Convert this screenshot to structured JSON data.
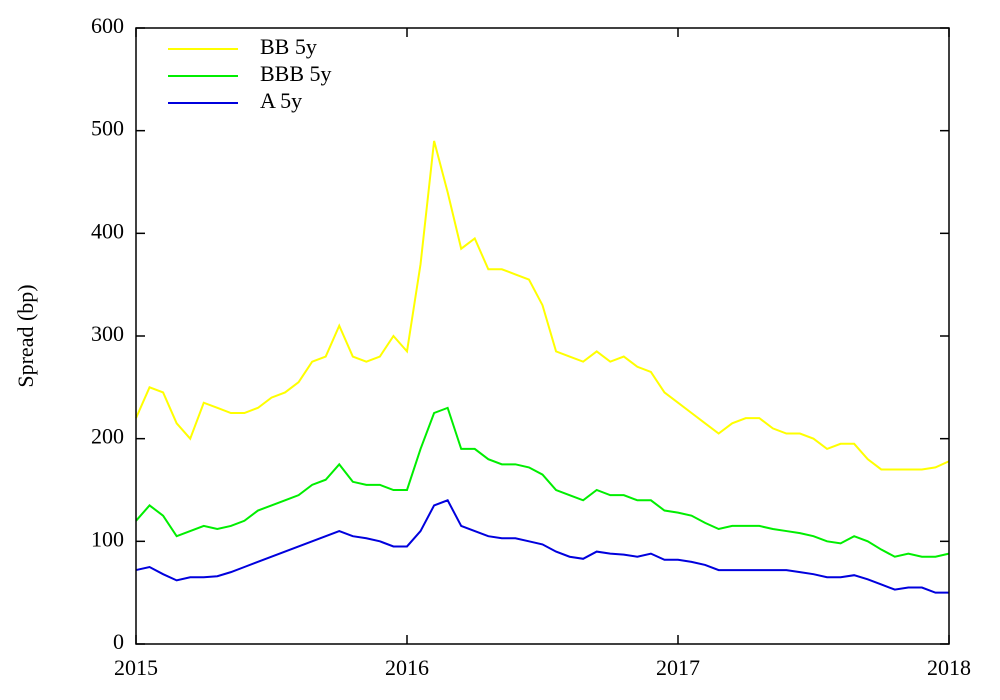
{
  "chart_data": {
    "type": "line",
    "y_label": "Spread (bp)",
    "x": [
      2015,
      2015.05,
      2015.1,
      2015.15,
      2015.2,
      2015.25,
      2015.3,
      2015.35,
      2015.4,
      2015.45,
      2015.5,
      2015.55,
      2015.6,
      2015.65,
      2015.7,
      2015.75,
      2015.8,
      2015.85,
      2015.9,
      2015.95,
      2016,
      2016.05,
      2016.1,
      2016.15,
      2016.2,
      2016.25,
      2016.3,
      2016.35,
      2016.4,
      2016.45,
      2016.5,
      2016.55,
      2016.6,
      2016.65,
      2016.7,
      2016.75,
      2016.8,
      2016.85,
      2016.9,
      2016.95,
      2017,
      2017.05,
      2017.1,
      2017.15,
      2017.2,
      2017.25,
      2017.3,
      2017.35,
      2017.4,
      2017.45,
      2017.5,
      2017.55,
      2017.6,
      2017.65,
      2017.7,
      2017.75,
      2017.8,
      2017.85,
      2017.9,
      2017.95,
      2018
    ],
    "series": [
      {
        "name": "BB 5y",
        "color": "#ffff00",
        "values": [
          220,
          250,
          245,
          215,
          200,
          235,
          230,
          225,
          225,
          230,
          240,
          245,
          255,
          275,
          280,
          310,
          280,
          275,
          280,
          300,
          285,
          370,
          490,
          440,
          385,
          395,
          365,
          365,
          360,
          355,
          330,
          285,
          280,
          275,
          285,
          275,
          280,
          270,
          265,
          245,
          235,
          225,
          215,
          205,
          215,
          220,
          220,
          210,
          205,
          205,
          200,
          190,
          195,
          195,
          180,
          170,
          170,
          170,
          170,
          172,
          178
        ]
      },
      {
        "name": "BBB 5y",
        "color": "#00ee00",
        "values": [
          120,
          135,
          125,
          105,
          110,
          115,
          112,
          115,
          120,
          130,
          135,
          140,
          145,
          155,
          160,
          175,
          158,
          155,
          155,
          150,
          150,
          190,
          225,
          230,
          190,
          190,
          180,
          175,
          175,
          172,
          165,
          150,
          145,
          140,
          150,
          145,
          145,
          140,
          140,
          130,
          128,
          125,
          118,
          112,
          115,
          115,
          115,
          112,
          110,
          108,
          105,
          100,
          98,
          105,
          100,
          92,
          85,
          88,
          85,
          85,
          88
        ]
      },
      {
        "name": "A 5y",
        "color": "#0000dd",
        "values": [
          72,
          75,
          68,
          62,
          65,
          65,
          66,
          70,
          75,
          80,
          85,
          90,
          95,
          100,
          105,
          110,
          105,
          103,
          100,
          95,
          95,
          110,
          135,
          140,
          115,
          110,
          105,
          103,
          103,
          100,
          97,
          90,
          85,
          83,
          90,
          88,
          87,
          85,
          88,
          82,
          82,
          80,
          77,
          72,
          72,
          72,
          72,
          72,
          72,
          70,
          68,
          65,
          65,
          67,
          63,
          58,
          53,
          55,
          55,
          50,
          50
        ]
      }
    ],
    "xlim": [
      2015,
      2018
    ],
    "xticks": [
      2015,
      2016,
      2017,
      2018
    ],
    "ylim": [
      0,
      600
    ],
    "yticks": [
      0,
      100,
      200,
      300,
      400,
      500,
      600
    ],
    "legend": "upper-left"
  }
}
